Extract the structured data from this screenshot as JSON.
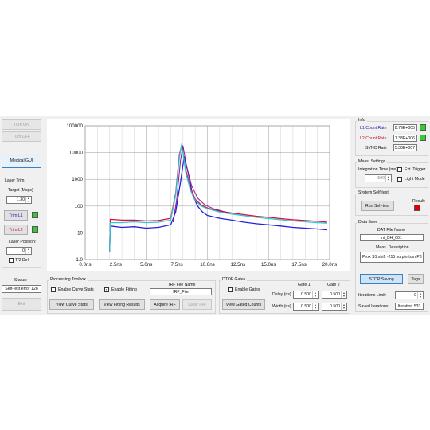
{
  "left": {
    "turn_on": "Turn ON",
    "turn_off": "Turn OFF",
    "medical_gui": "Medical GUI",
    "laser_trim_title": "Laser Trim",
    "target_label": "Target (Mcps)",
    "target_value": "1.30",
    "trim_l1": "Trim L1",
    "trim_l2": "Trim L2",
    "trim_l1_led_color": "#33cc33",
    "trim_l2_led_color": "#33cc33",
    "laser_position_label": "Laser Position:",
    "laser_position_value": "0",
    "t2_del_label": "T/2 Del.",
    "status_label": "Status:",
    "status_value": "Self-test error 128",
    "exit": "Exit"
  },
  "processing": {
    "title": "Processing Toolbox",
    "enable_curve_stats": "Enable Curve Stats",
    "enable_curve_stats_checked": false,
    "enable_fitting": "Enable Fitting",
    "enable_fitting_checked": true,
    "irf_file_name_label": "IRF File Name",
    "irf_file_value": "IRF_File",
    "view_curve_stats": "View Curve Stats",
    "view_fitting_results": "View Fitting Results",
    "acquire_irf": "Acquire IRF",
    "clear_irf": "Clear IRF"
  },
  "dtof": {
    "title": "DTOF Gates",
    "enable_gates": "Enable Gates",
    "enable_gates_checked": false,
    "view_gated_counts": "View Gated Counts",
    "gate1_label": "Gate 1",
    "gate2_label": "Gate 2",
    "delay_label": "Delay (ns)",
    "width_label": "Width (ns)",
    "delay_gate1": "0.500",
    "delay_gate2": "0.500",
    "width_gate1": "0.500",
    "width_gate2": "0.500"
  },
  "info": {
    "title": "Info",
    "l1_label": "L1 Count Rate",
    "l1_value": "8.79E+005",
    "l2_label": "L2 Count Rate",
    "l2_value": "1.33E+006",
    "sync_label": "SYNC Rate",
    "sync_value": "5.30E+007",
    "l1_led_color": "#33cc33",
    "l2_led_color": "#33cc33",
    "l1_label_color": "#1a1ab0",
    "l2_label_color": "#c0102a"
  },
  "meas": {
    "title": "Meas. Settings",
    "integration_label": "Integration Time (ms)",
    "integration_value": "500",
    "ext_trigger": "Ext. Trigger",
    "light_mode": "Light Mode"
  },
  "selftest": {
    "title": "System Self-test",
    "run_button": "Run Self-test",
    "result_label": "Result:",
    "result_led_color": "#e00000"
  },
  "datasave": {
    "title": "Data Save",
    "dat_file_label": "DAT File Name",
    "dat_file_value": "ni_BH_001",
    "meas_desc_label": "Meas. Description",
    "meas_desc_value": "Prox S1 shift -215 su phntom P3",
    "stop_saving": "STOP Saving",
    "tags": "Tags",
    "iterations_limit_label": "Iterations Limit:",
    "iterations_limit_value": "0",
    "saved_iterations_label": "Saved Iterations:",
    "saved_iterations_value": "Iteration 533"
  },
  "chart_data": {
    "type": "line",
    "y_scale": "log",
    "ylim": [
      1,
      100000
    ],
    "xlim": [
      0,
      20
    ],
    "x_tick_labels": [
      "0.0ns",
      "2.5ns",
      "5.0ns",
      "7.5ns",
      "10.0ns",
      "12.5ns",
      "15.0ns",
      "17.5ns",
      "20.0ns"
    ],
    "y_tick_labels": [
      "100000",
      "10000",
      "1000",
      "100",
      "10",
      "1.0"
    ],
    "grid": true,
    "series": [
      {
        "color": "#2222dd",
        "x": [
          2.0,
          2.05,
          3,
          4,
          5,
          6,
          7,
          7.4,
          7.8,
          8.1,
          8.4,
          8.8,
          9.2,
          9.6,
          10,
          11,
          12,
          13,
          14,
          15,
          16,
          17,
          18,
          19,
          19.8
        ],
        "values": [
          2,
          18,
          16,
          17,
          15,
          16,
          20,
          60,
          800,
          7000,
          2000,
          250,
          100,
          60,
          45,
          35,
          30,
          25,
          22,
          20,
          18,
          16,
          15,
          14,
          13
        ]
      },
      {
        "color": "#e0103a",
        "x": [
          2.0,
          2.05,
          3,
          4,
          5,
          6,
          7,
          7.4,
          7.7,
          7.9,
          8.2,
          8.6,
          9.0,
          9.5,
          10,
          11,
          12,
          13,
          14,
          15,
          16,
          17,
          18,
          19,
          19.8
        ],
        "values": [
          2,
          32,
          30,
          30,
          28,
          29,
          35,
          300,
          8000,
          20000,
          2500,
          500,
          180,
          110,
          85,
          65,
          55,
          48,
          42,
          38,
          34,
          31,
          29,
          27,
          25
        ]
      },
      {
        "color": "#30c8d8",
        "x": [
          2.0,
          2.05,
          3,
          4,
          5,
          6,
          7,
          7.4,
          7.7,
          7.9,
          8.2,
          8.6,
          9.0,
          9.5,
          10,
          11,
          12,
          13,
          14,
          15,
          16,
          17,
          18,
          19,
          19.8
        ],
        "values": [
          2,
          24,
          24,
          26,
          24,
          25,
          30,
          250,
          6000,
          22000,
          2000,
          400,
          160,
          100,
          80,
          60,
          50,
          44,
          38,
          34,
          31,
          28,
          26,
          24,
          23
        ]
      },
      {
        "color": "#8a1a8a",
        "x": [
          7.2,
          7.5,
          7.8,
          8.0,
          8.3,
          8.7,
          9.2,
          9.8,
          10.5,
          11.5
        ],
        "values": [
          25,
          200,
          5000,
          18000,
          3000,
          600,
          200,
          110,
          80,
          60
        ]
      }
    ]
  }
}
